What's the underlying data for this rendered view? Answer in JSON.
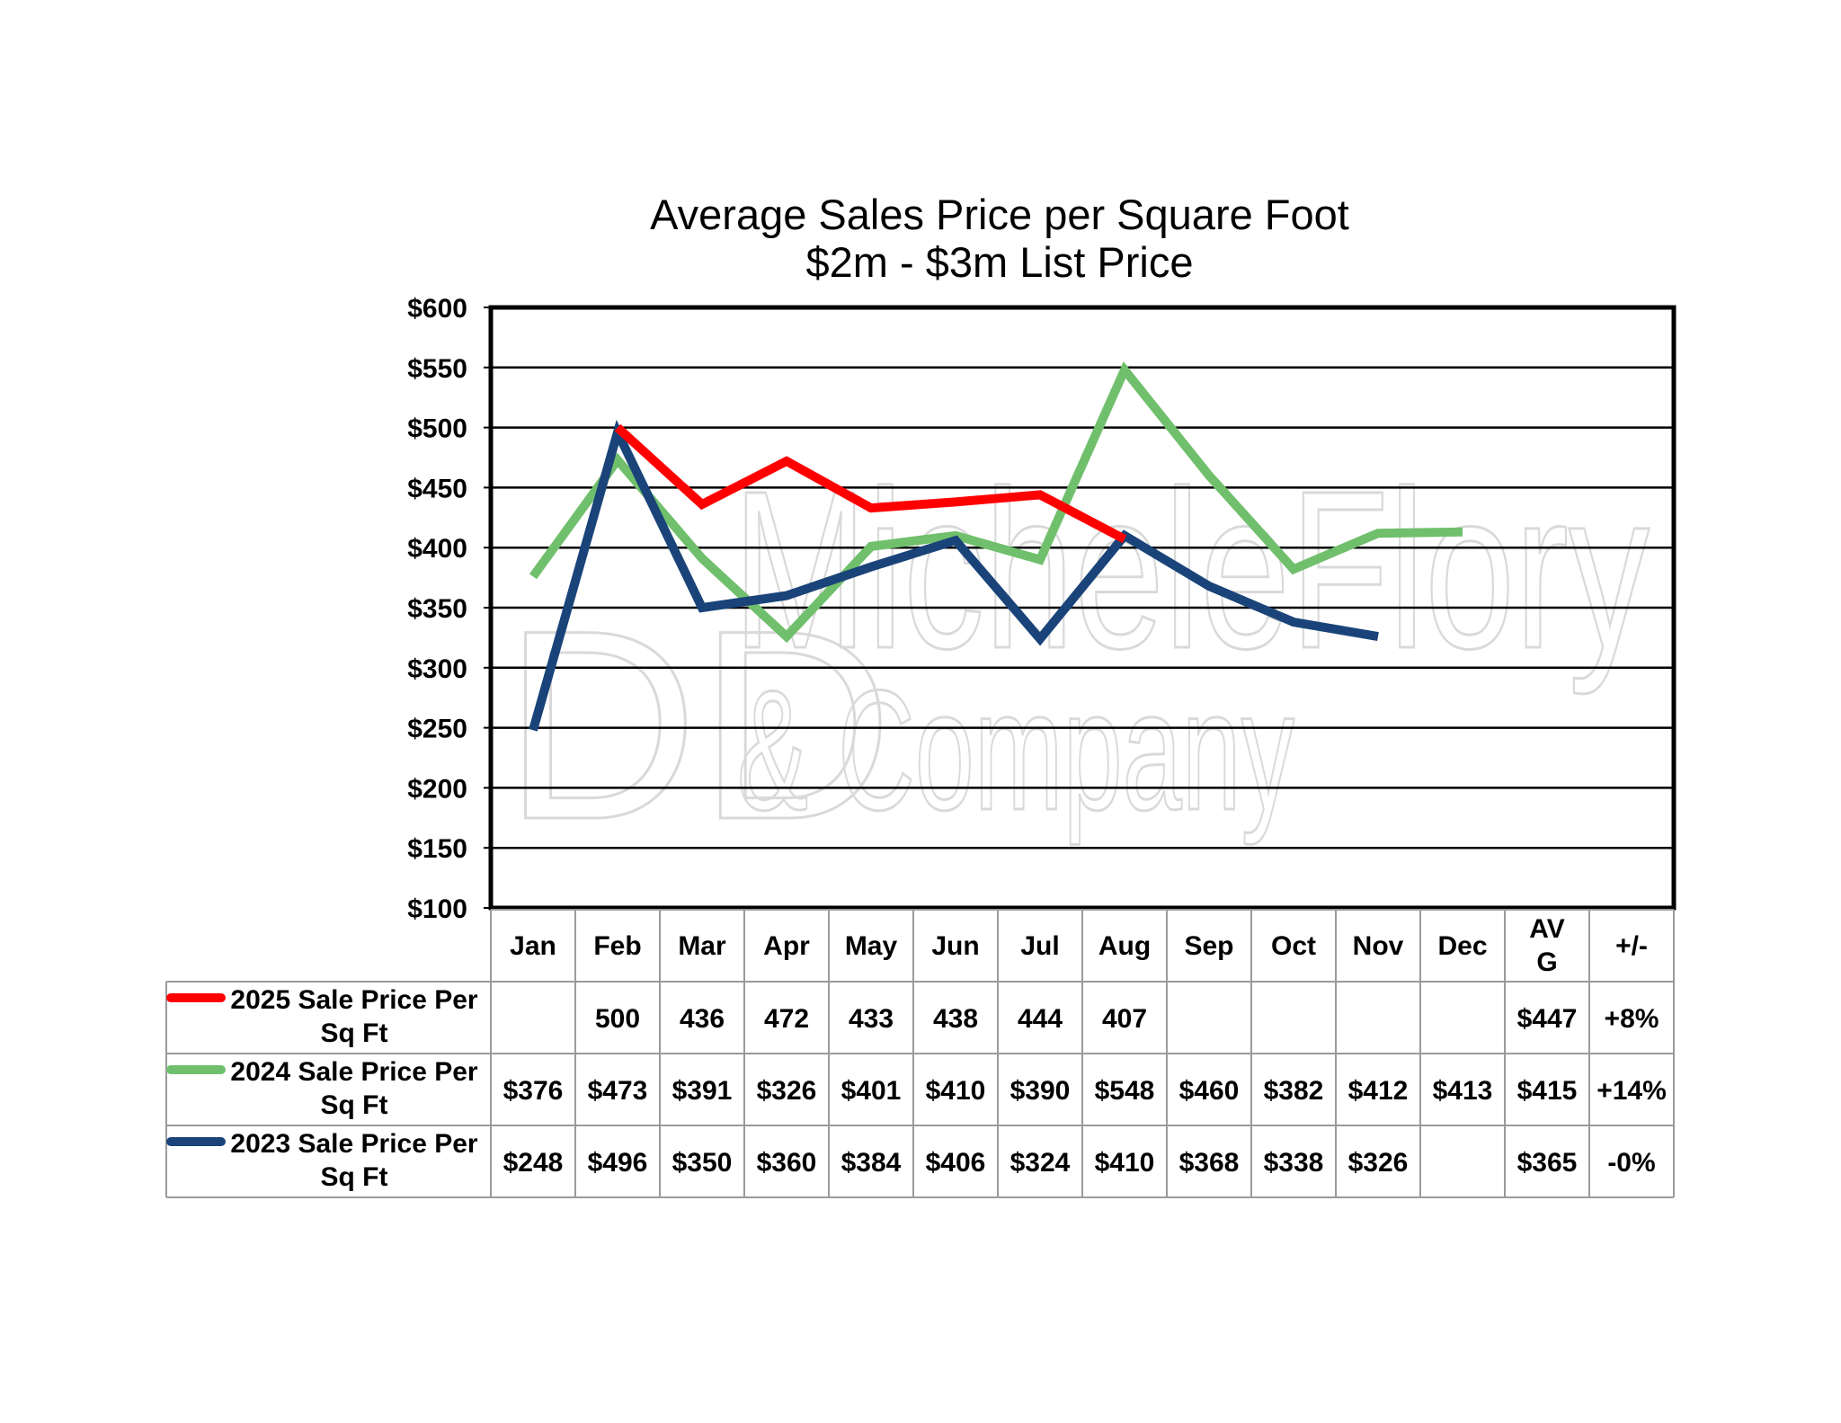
{
  "chart_data": {
    "type": "line",
    "title_line1": "Average Sales Price per Square Foot",
    "title_line2": "$2m - $3m List Price",
    "watermark_line1": "MicheleFlory",
    "watermark_line2": "& Company",
    "ylim": [
      100,
      600
    ],
    "y_ticks": [
      "$600",
      "$550",
      "$500",
      "$450",
      "$400",
      "$350",
      "$300",
      "$250",
      "$200",
      "$150",
      "$100"
    ],
    "grid": true,
    "categories": [
      "Jan",
      "Feb",
      "Mar",
      "Apr",
      "May",
      "Jun",
      "Jul",
      "Aug",
      "Sep",
      "Oct",
      "Nov",
      "Dec"
    ],
    "summary_headers": [
      "AV G",
      "+/-"
    ],
    "series": [
      {
        "name": "2025 Sale Price Per Sq Ft",
        "color": "#ff0000",
        "values": [
          null,
          500,
          436,
          472,
          433,
          438,
          444,
          407,
          null,
          null,
          null,
          null
        ],
        "table": [
          "",
          "500",
          "436",
          "472",
          "433",
          "438",
          "444",
          "407",
          "",
          "",
          "",
          "",
          "$447",
          "+8%"
        ]
      },
      {
        "name": "2024 Sale Price Per Sq Ft",
        "color": "#70bf6c",
        "values": [
          376,
          473,
          391,
          326,
          401,
          410,
          390,
          548,
          460,
          382,
          412,
          413
        ],
        "table": [
          "$376",
          "$473",
          "$391",
          "$326",
          "$401",
          "$410",
          "$390",
          "$548",
          "$460",
          "$382",
          "$412",
          "$413",
          "$415",
          "+14%"
        ]
      },
      {
        "name": "2023 Sale Price Per Sq Ft",
        "color": "#1a4479",
        "values": [
          248,
          496,
          350,
          360,
          384,
          406,
          324,
          410,
          368,
          338,
          326,
          null
        ],
        "table": [
          "$248",
          "$496",
          "$350",
          "$360",
          "$384",
          "$406",
          "$324",
          "$410",
          "$368",
          "$338",
          "$326",
          "",
          "$365",
          "-0%"
        ]
      }
    ]
  }
}
